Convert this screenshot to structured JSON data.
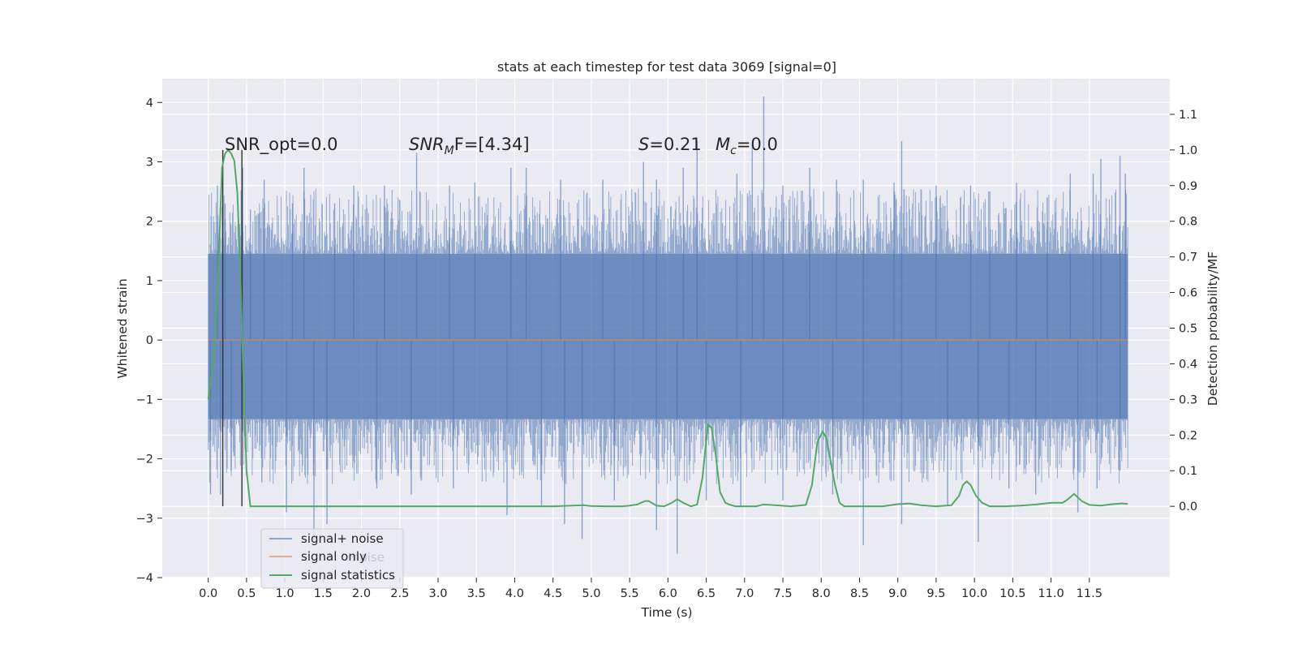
{
  "chart_data": {
    "type": "line",
    "title": "stats at each timestep for test data 3069 [signal=0]",
    "xlabel": "Time (s)",
    "ylabel_left": "Whitened strain",
    "ylabel_right": "Detection probability/MF",
    "xlim": [
      -0.6,
      12.55
    ],
    "ylim_left": [
      -4,
      4.4
    ],
    "ylim_right": [
      -0.2,
      1.2
    ],
    "x_ticks": [
      "0.0",
      "0.5",
      "1.0",
      "1.5",
      "2.0",
      "2.5",
      "3.0",
      "3.5",
      "4.0",
      "4.5",
      "5.0",
      "5.5",
      "6.0",
      "6.5",
      "7.0",
      "7.5",
      "8.0",
      "8.5",
      "9.0",
      "9.5",
      "10.0",
      "10.5",
      "11.0",
      "11.5"
    ],
    "y_ticks_left": [
      "4",
      "3",
      "2",
      "1",
      "0",
      "−1",
      "−2",
      "−3",
      "−4"
    ],
    "y_ticks_right": [
      "1.1",
      "1.0",
      "0.9",
      "0.8",
      "0.7",
      "0.6",
      "0.5",
      "0.4",
      "0.3",
      "0.2",
      "0.1",
      "0.0"
    ],
    "grid": true,
    "colors": {
      "background": "#eaeaf2",
      "grid": "#ffffff",
      "noise": "#4c72b0",
      "signal": "#dd8452",
      "stats": "#55a868",
      "marker": "#333333"
    },
    "annotations": {
      "snr_opt": "SNR_opt=0.0",
      "snr_mf_base": "SNR",
      "snr_mf_sub": "M",
      "snr_mf_rest": "F=[4.34]",
      "s_var": "S",
      "s_val": "=0.21",
      "mc_var": "M",
      "mc_sub": "c",
      "mc_val": "=0.0"
    },
    "vertical_markers_x": [
      0.19,
      0.44
    ],
    "series": [
      {
        "name": "signal+ noise",
        "axis": "left",
        "t_range": [
          0.0,
          12.0
        ],
        "envelope_pos_pct": 1.45,
        "envelope_neg_pct": -1.33,
        "spikes_up": [
          [
            0.12,
            2.6
          ],
          [
            0.22,
            2.3
          ],
          [
            0.45,
            2.9
          ],
          [
            0.55,
            2.2
          ],
          [
            0.73,
            2.7
          ],
          [
            1.1,
            2.3
          ],
          [
            1.25,
            2.9
          ],
          [
            1.65,
            2.3
          ],
          [
            1.9,
            2.6
          ],
          [
            2.3,
            2.6
          ],
          [
            2.72,
            3.15
          ],
          [
            3.15,
            2.6
          ],
          [
            3.48,
            2.65
          ],
          [
            3.95,
            2.9
          ],
          [
            4.15,
            2.9
          ],
          [
            4.6,
            2.7
          ],
          [
            5.15,
            2.7
          ],
          [
            5.68,
            3.0
          ],
          [
            5.85,
            2.7
          ],
          [
            6.2,
            2.9
          ],
          [
            6.38,
            3.35
          ],
          [
            6.9,
            2.8
          ],
          [
            7.1,
            3.3
          ],
          [
            7.25,
            4.1
          ],
          [
            7.5,
            2.6
          ],
          [
            7.85,
            2.9
          ],
          [
            8.2,
            2.7
          ],
          [
            8.55,
            2.7
          ],
          [
            8.95,
            2.65
          ],
          [
            9.05,
            3.35
          ],
          [
            9.5,
            2.6
          ],
          [
            9.95,
            2.6
          ],
          [
            10.2,
            2.5
          ],
          [
            10.55,
            2.65
          ],
          [
            10.95,
            2.4
          ],
          [
            11.25,
            2.8
          ],
          [
            11.55,
            2.8
          ],
          [
            11.65,
            3.05
          ],
          [
            11.9,
            3.1
          ],
          [
            11.97,
            2.8
          ]
        ],
        "spikes_down": [
          [
            0.03,
            -2.6
          ],
          [
            0.16,
            -2.6
          ],
          [
            0.3,
            -2.2
          ],
          [
            0.7,
            -2.4
          ],
          [
            1.02,
            -2.9
          ],
          [
            1.38,
            -3.35
          ],
          [
            1.55,
            -3.1
          ],
          [
            2.2,
            -2.5
          ],
          [
            2.65,
            -2.6
          ],
          [
            3.2,
            -2.5
          ],
          [
            3.9,
            -2.95
          ],
          [
            4.35,
            -2.8
          ],
          [
            4.65,
            -3.1
          ],
          [
            4.88,
            -3.35
          ],
          [
            5.3,
            -2.7
          ],
          [
            5.85,
            -3.2
          ],
          [
            6.12,
            -3.6
          ],
          [
            6.5,
            -2.7
          ],
          [
            6.95,
            -2.8
          ],
          [
            7.5,
            -2.7
          ],
          [
            8.15,
            -2.6
          ],
          [
            8.55,
            -3.45
          ],
          [
            9.05,
            -3.1
          ],
          [
            9.65,
            -2.8
          ],
          [
            10.05,
            -3.4
          ],
          [
            10.45,
            -2.5
          ],
          [
            10.8,
            -2.6
          ],
          [
            11.35,
            -2.9
          ],
          [
            11.6,
            -2.5
          ],
          [
            11.9,
            -2.2
          ]
        ]
      },
      {
        "name": "signal only",
        "axis": "left",
        "x": [
          0.0,
          12.0
        ],
        "y": [
          0.0,
          0.0
        ]
      },
      {
        "name": "signal statistics",
        "axis": "right",
        "x": [
          0.0,
          0.05,
          0.1,
          0.14,
          0.18,
          0.22,
          0.26,
          0.3,
          0.34,
          0.38,
          0.42,
          0.46,
          0.5,
          0.55,
          0.6,
          0.65,
          2.0,
          3.0,
          4.0,
          4.5,
          4.9,
          5.0,
          5.2,
          5.4,
          5.5,
          5.6,
          5.7,
          5.75,
          5.85,
          5.95,
          6.05,
          6.12,
          6.2,
          6.3,
          6.38,
          6.45,
          6.52,
          6.57,
          6.62,
          6.68,
          6.75,
          6.8,
          6.88,
          7.0,
          7.15,
          7.25,
          7.4,
          7.6,
          7.8,
          7.88,
          7.95,
          8.02,
          8.07,
          8.12,
          8.18,
          8.24,
          8.3,
          8.4,
          8.6,
          8.8,
          9.0,
          9.15,
          9.3,
          9.5,
          9.7,
          9.8,
          9.85,
          9.9,
          9.95,
          10.02,
          10.1,
          10.2,
          10.4,
          10.6,
          10.8,
          11.0,
          11.15,
          11.22,
          11.3,
          11.4,
          11.5,
          11.65,
          11.8,
          11.92,
          12.0
        ],
        "y": [
          0.3,
          0.38,
          0.5,
          0.72,
          0.95,
          0.99,
          1.0,
          0.99,
          0.97,
          0.88,
          0.65,
          0.35,
          0.1,
          0.0,
          0.0,
          0.0,
          0.0,
          0.0,
          0.0,
          0.0,
          0.003,
          0.001,
          0.0,
          0.0,
          0.002,
          0.005,
          0.015,
          0.015,
          0.002,
          0.0,
          0.01,
          0.02,
          0.01,
          0.0,
          0.005,
          0.08,
          0.23,
          0.22,
          0.15,
          0.04,
          0.01,
          0.005,
          0.0,
          0.0,
          0.0,
          0.005,
          0.003,
          0.0,
          0.004,
          0.06,
          0.18,
          0.21,
          0.19,
          0.13,
          0.06,
          0.01,
          0.0,
          0.0,
          0.0,
          0.0,
          0.006,
          0.008,
          0.003,
          0.0,
          0.003,
          0.03,
          0.06,
          0.07,
          0.06,
          0.03,
          0.01,
          0.0,
          0.0,
          0.002,
          0.005,
          0.01,
          0.01,
          0.02,
          0.035,
          0.015,
          0.004,
          0.002,
          0.006,
          0.008,
          0.007
        ]
      }
    ],
    "legend": {
      "placement": "lower-left",
      "labels": [
        "signal+ noise",
        "signal only",
        "signal statistics"
      ],
      "ghost_label": "noise"
    }
  }
}
